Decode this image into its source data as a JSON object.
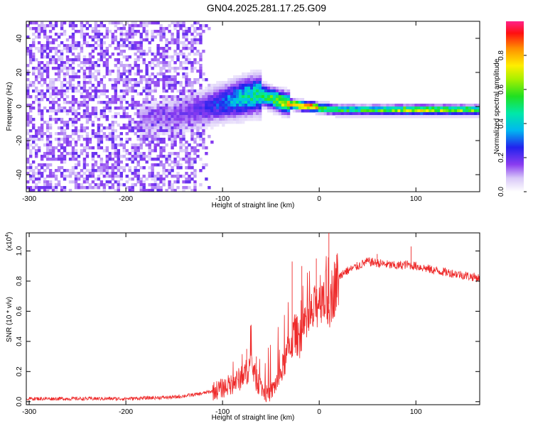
{
  "title": "GN04.2025.281.17.25.G09",
  "colors": {
    "snr_line": "#ee2a2a",
    "axis": "#000000",
    "background": "#ffffff"
  },
  "chart_data": [
    {
      "type": "heatmap",
      "name": "spectrogram",
      "xlabel": "Height of straight line (km)",
      "ylabel": "Frequency (Hz)",
      "xlim": [
        -303,
        166
      ],
      "ylim": [
        -50,
        50
      ],
      "x_ticks": [
        {
          "value": -300,
          "label": "-300"
        },
        {
          "value": -200,
          "label": "-200"
        },
        {
          "value": -100,
          "label": "-100"
        },
        {
          "value": 0,
          "label": "0"
        },
        {
          "value": 100,
          "label": "100"
        }
      ],
      "y_ticks": [
        {
          "value": 40,
          "label": "40"
        },
        {
          "value": 20,
          "label": "20"
        },
        {
          "value": 0,
          "label": "0"
        },
        {
          "value": -20,
          "label": "-20"
        },
        {
          "value": -40,
          "label": "-40"
        }
      ],
      "colorbar": {
        "label": "Normalized spectral amplitude",
        "range": [
          0,
          1
        ],
        "ticks": [
          {
            "value": 0.0,
            "label": "0.0"
          },
          {
            "value": 0.2,
            "label": "0.2"
          },
          {
            "value": 0.4,
            "label": "0.4"
          },
          {
            "value": 0.6,
            "label": "0.6"
          },
          {
            "value": 0.8,
            "label": "0.8"
          }
        ]
      },
      "signal_track": {
        "height_km": [
          -175,
          -150,
          -125,
          -100,
          -80,
          -65,
          -55,
          -45,
          -35,
          -25,
          -15,
          -5,
          0,
          20,
          50,
          100,
          166
        ],
        "freq_hz": [
          -8,
          -5,
          -2,
          2,
          5,
          7,
          6,
          4,
          2,
          1,
          0,
          0,
          -1,
          -2,
          -2,
          -2,
          -2
        ],
        "amplitude": [
          0.12,
          0.15,
          0.2,
          0.3,
          0.45,
          0.5,
          0.55,
          0.65,
          0.75,
          0.9,
          0.95,
          0.9,
          0.7,
          0.55,
          0.55,
          0.75,
          0.6
        ]
      },
      "noise_region": {
        "x_range": [
          -303,
          -130
        ],
        "fade_to": -110
      }
    },
    {
      "type": "line",
      "name": "snr",
      "xlabel": "Height of straight line (km)",
      "ylabel": "SNR (10 * v/v)",
      "y_multiplier": "(x10",
      "y_multiplier_exp": "4",
      "y_multiplier_close": ")",
      "xlim": [
        -303,
        166
      ],
      "ylim": [
        -0.02,
        1.12
      ],
      "units": "x10^4",
      "x_ticks": [
        {
          "value": -300,
          "label": "-300"
        },
        {
          "value": -200,
          "label": "-200"
        },
        {
          "value": -100,
          "label": "-100"
        },
        {
          "value": 0,
          "label": "0"
        },
        {
          "value": 100,
          "label": "100"
        }
      ],
      "y_ticks": [
        {
          "value": 0.0,
          "label": "0.0"
        },
        {
          "value": 0.2,
          "label": "0.2"
        },
        {
          "value": 0.4,
          "label": "0.4"
        },
        {
          "value": 0.6,
          "label": "0.6"
        },
        {
          "value": 0.8,
          "label": "0.8"
        },
        {
          "value": 1.0,
          "label": "1.0"
        }
      ],
      "envelope": {
        "x": [
          -303,
          -200,
          -150,
          -125,
          -110,
          -100,
          -90,
          -80,
          -75,
          -70,
          -65,
          -55,
          -50,
          -45,
          -40,
          -35,
          -30,
          -25,
          -20,
          -15,
          -10,
          -5,
          0,
          5,
          10,
          15,
          20,
          25,
          30,
          40,
          50,
          60,
          70,
          80,
          90,
          100,
          120,
          140,
          166
        ],
        "y": [
          0.02,
          0.02,
          0.03,
          0.05,
          0.07,
          0.09,
          0.12,
          0.16,
          0.2,
          0.26,
          0.14,
          0.05,
          0.06,
          0.12,
          0.18,
          0.28,
          0.38,
          0.45,
          0.42,
          0.48,
          0.55,
          0.6,
          0.7,
          0.72,
          0.65,
          0.75,
          0.82,
          0.86,
          0.87,
          0.9,
          0.93,
          0.92,
          0.91,
          0.9,
          0.91,
          0.9,
          0.87,
          0.85,
          0.82
        ]
      },
      "peaks": [
        {
          "x": 10,
          "y": 1.12
        },
        {
          "x": 95,
          "y": 1.03
        },
        {
          "x": 60,
          "y": 0.98
        },
        {
          "x": -28,
          "y": 0.93
        },
        {
          "x": -18,
          "y": 0.9
        },
        {
          "x": -3,
          "y": 0.95
        },
        {
          "x": -75,
          "y": 0.35
        },
        {
          "x": -65,
          "y": 0.3
        }
      ]
    }
  ]
}
